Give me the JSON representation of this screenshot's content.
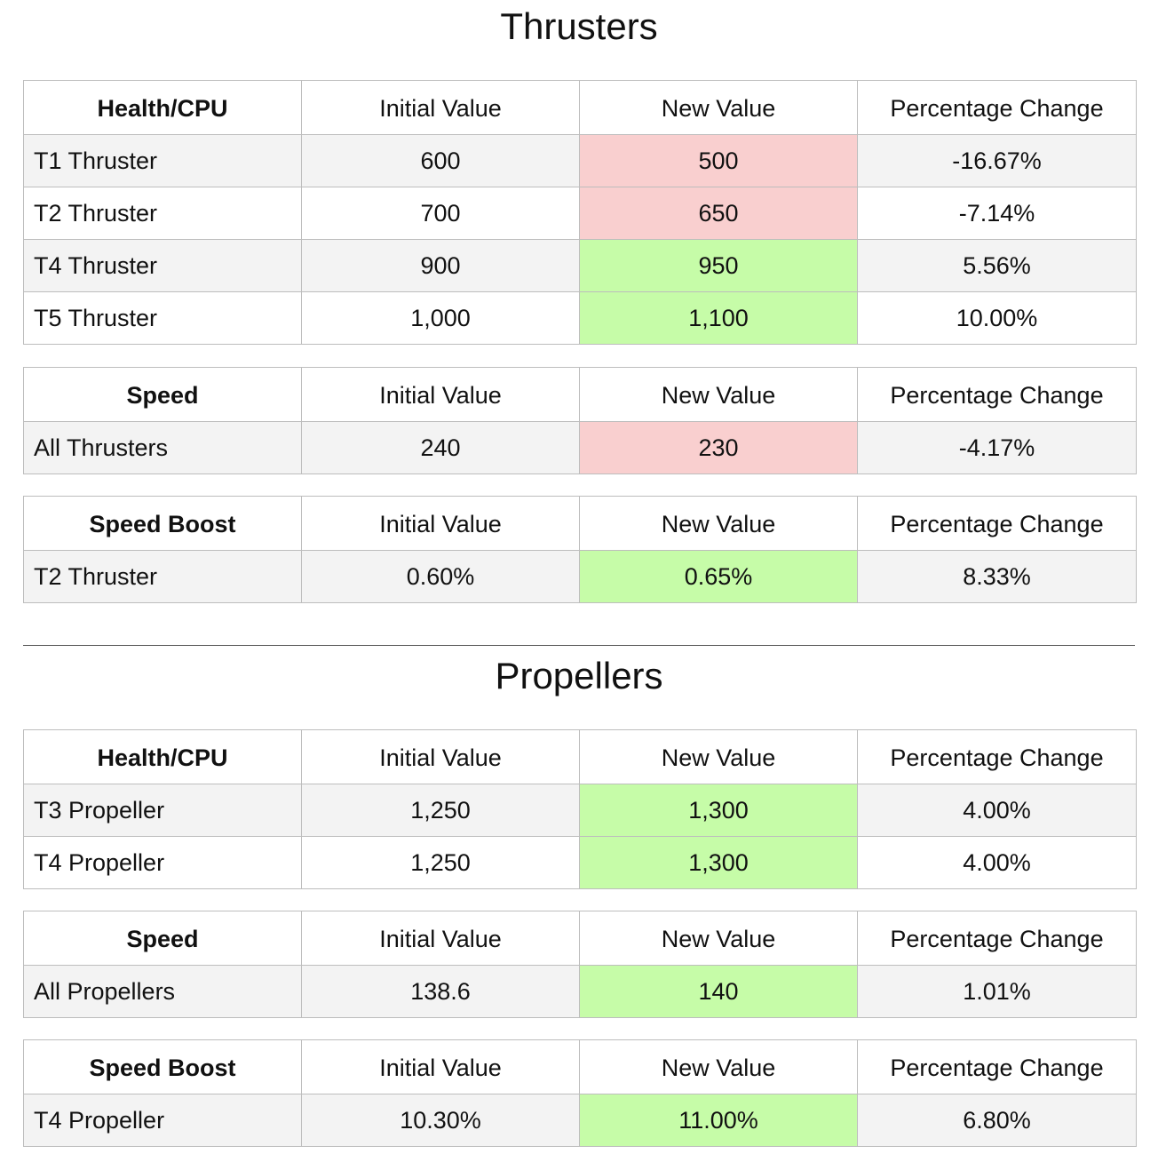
{
  "colors": {
    "decrease": "#f9cfcf",
    "increase": "#c6fca8",
    "row_shade": "#f3f3f3"
  },
  "sections": [
    {
      "title": "Thrusters",
      "tables": [
        {
          "headers": [
            "Health/CPU",
            "Initial Value",
            "New Value",
            "Percentage Change"
          ],
          "rows": [
            {
              "label": "T1 Thruster",
              "initial": "600",
              "new": "500",
              "change": "-16.67%",
              "direction": "decrease"
            },
            {
              "label": "T2 Thruster",
              "initial": "700",
              "new": "650",
              "change": "-7.14%",
              "direction": "decrease"
            },
            {
              "label": "T4 Thruster",
              "initial": "900",
              "new": "950",
              "change": "5.56%",
              "direction": "increase"
            },
            {
              "label": "T5 Thruster",
              "initial": "1,000",
              "new": "1,100",
              "change": "10.00%",
              "direction": "increase"
            }
          ]
        },
        {
          "headers": [
            "Speed",
            "Initial Value",
            "New Value",
            "Percentage Change"
          ],
          "rows": [
            {
              "label": "All Thrusters",
              "initial": "240",
              "new": "230",
              "change": "-4.17%",
              "direction": "decrease"
            }
          ]
        },
        {
          "headers": [
            "Speed Boost",
            "Initial Value",
            "New Value",
            "Percentage Change"
          ],
          "rows": [
            {
              "label": "T2 Thruster",
              "initial": "0.60%",
              "new": "0.65%",
              "change": "8.33%",
              "direction": "increase"
            }
          ]
        }
      ]
    },
    {
      "title": "Propellers",
      "tables": [
        {
          "headers": [
            "Health/CPU",
            "Initial Value",
            "New Value",
            "Percentage Change"
          ],
          "rows": [
            {
              "label": "T3 Propeller",
              "initial": "1,250",
              "new": "1,300",
              "change": "4.00%",
              "direction": "increase"
            },
            {
              "label": "T4 Propeller",
              "initial": "1,250",
              "new": "1,300",
              "change": "4.00%",
              "direction": "increase"
            }
          ]
        },
        {
          "headers": [
            "Speed",
            "Initial Value",
            "New Value",
            "Percentage Change"
          ],
          "rows": [
            {
              "label": "All Propellers",
              "initial": "138.6",
              "new": "140",
              "change": "1.01%",
              "direction": "increase"
            }
          ]
        },
        {
          "headers": [
            "Speed Boost",
            "Initial Value",
            "New Value",
            "Percentage Change"
          ],
          "rows": [
            {
              "label": "T4 Propeller",
              "initial": "10.30%",
              "new": "11.00%",
              "change": "6.80%",
              "direction": "increase"
            }
          ]
        }
      ]
    }
  ]
}
